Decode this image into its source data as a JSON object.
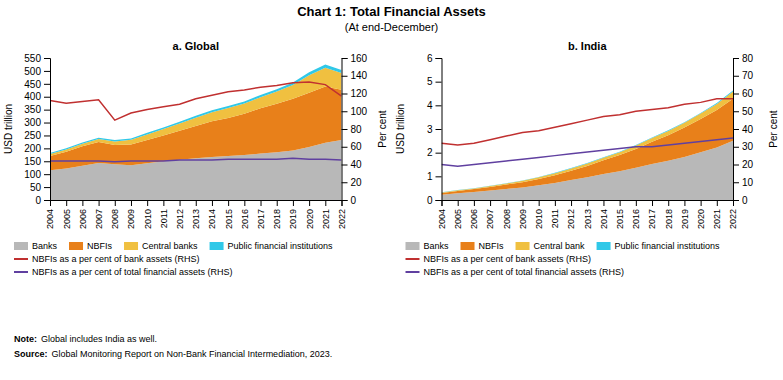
{
  "title": "Chart 1: Total Financial Assets",
  "subtitle": "(At end-December)",
  "annotations": [
    {
      "label": "Note:",
      "text": "Global includes India as well."
    },
    {
      "label": "Source:",
      "text": "Global Monitoring Report on Non-Bank Financial Intermediation, 2023."
    }
  ],
  "chart_data": [
    {
      "type": "area",
      "stacked": true,
      "title": "a. Global",
      "x": [
        2004,
        2005,
        2006,
        2007,
        2008,
        2009,
        2010,
        2011,
        2012,
        2013,
        2014,
        2015,
        2016,
        2017,
        2018,
        2019,
        2020,
        2021,
        2022
      ],
      "xlim": [
        2004,
        2022
      ],
      "xticks": [
        2004,
        2005,
        2006,
        2007,
        2008,
        2009,
        2010,
        2011,
        2012,
        2013,
        2014,
        2015,
        2016,
        2017,
        2018,
        2019,
        2020,
        2021,
        2022
      ],
      "ylabel": "USD trillion",
      "y2label": "Per cent",
      "ylim": [
        0,
        550
      ],
      "yticks": [
        0,
        50,
        100,
        150,
        200,
        250,
        300,
        350,
        400,
        450,
        500,
        550
      ],
      "y2lim": [
        0,
        160
      ],
      "y2ticks": [
        0,
        20,
        40,
        60,
        80,
        100,
        120,
        140,
        160
      ],
      "legend": "bottom",
      "series": [
        {
          "name": "Banks",
          "type": "area",
          "color": "#b8b8b8",
          "values": [
            115,
            122,
            133,
            143,
            138,
            135,
            142,
            150,
            156,
            162,
            167,
            170,
            174,
            180,
            185,
            192,
            205,
            222,
            232
          ]
        },
        {
          "name": "NBFIs",
          "type": "area",
          "color": "#e8801a",
          "values": [
            55,
            65,
            75,
            82,
            75,
            80,
            90,
            100,
            112,
            125,
            138,
            148,
            160,
            175,
            188,
            200,
            210,
            218,
            195
          ]
        },
        {
          "name": "Central banks",
          "type": "area",
          "color": "#f0c040",
          "values": [
            8,
            9,
            10,
            11,
            14,
            18,
            22,
            25,
            28,
            32,
            35,
            38,
            40,
            43,
            47,
            53,
            68,
            72,
            65
          ]
        },
        {
          "name": "Public financial institutions",
          "type": "area",
          "color": "#30c8e8",
          "values": [
            4,
            4,
            5,
            5,
            5,
            5,
            6,
            6,
            7,
            7,
            8,
            8,
            8,
            9,
            9,
            10,
            12,
            13,
            12
          ]
        },
        {
          "name": "NBFIs as a per cent of bank assets (RHS)",
          "type": "line",
          "axis": "y2",
          "color": "#c03030",
          "values": [
            112,
            109,
            111,
            113,
            90,
            98,
            102,
            105,
            108,
            114,
            118,
            122,
            124,
            127,
            129,
            132,
            133,
            130,
            117
          ]
        },
        {
          "name": "NBFIs as a per cent of total financial assets (RHS)",
          "type": "line",
          "axis": "y2",
          "color": "#6040a0",
          "values": [
            44,
            44,
            44,
            44,
            43,
            44,
            44,
            44,
            45,
            45,
            45,
            46,
            46,
            46,
            46,
            47,
            46,
            46,
            45
          ]
        }
      ]
    },
    {
      "type": "area",
      "stacked": true,
      "title": "b. India",
      "x": [
        2004,
        2005,
        2006,
        2007,
        2008,
        2009,
        2010,
        2011,
        2012,
        2013,
        2014,
        2015,
        2016,
        2017,
        2018,
        2019,
        2020,
        2021,
        2022
      ],
      "xlim": [
        2004,
        2022
      ],
      "xticks": [
        2004,
        2005,
        2006,
        2007,
        2008,
        2009,
        2010,
        2011,
        2012,
        2013,
        2014,
        2015,
        2016,
        2017,
        2018,
        2019,
        2020,
        2021,
        2022
      ],
      "ylabel": "USD trillion",
      "y2label": "Per cent",
      "ylim": [
        0,
        6
      ],
      "yticks": [
        0,
        1,
        2,
        3,
        4,
        5,
        6
      ],
      "y2lim": [
        0,
        80
      ],
      "y2ticks": [
        0,
        10,
        20,
        30,
        40,
        50,
        60,
        70,
        80
      ],
      "legend": "bottom",
      "series": [
        {
          "name": "Banks",
          "type": "area",
          "color": "#b8b8b8",
          "values": [
            0.22,
            0.28,
            0.34,
            0.4,
            0.47,
            0.53,
            0.62,
            0.72,
            0.84,
            0.96,
            1.1,
            1.22,
            1.36,
            1.52,
            1.66,
            1.82,
            2.02,
            2.22,
            2.5
          ]
        },
        {
          "name": "NBFIs",
          "type": "area",
          "color": "#e8801a",
          "values": [
            0.08,
            0.1,
            0.12,
            0.15,
            0.18,
            0.22,
            0.27,
            0.33,
            0.4,
            0.48,
            0.58,
            0.68,
            0.8,
            0.94,
            1.08,
            1.24,
            1.4,
            1.58,
            1.78
          ]
        },
        {
          "name": "Central bank",
          "type": "area",
          "color": "#f0c040",
          "values": [
            0.02,
            0.03,
            0.03,
            0.04,
            0.05,
            0.06,
            0.07,
            0.08,
            0.09,
            0.1,
            0.11,
            0.12,
            0.14,
            0.16,
            0.18,
            0.2,
            0.23,
            0.26,
            0.3
          ]
        },
        {
          "name": "Public financial institutions",
          "type": "area",
          "color": "#30c8e8",
          "values": [
            0.01,
            0.01,
            0.01,
            0.01,
            0.01,
            0.01,
            0.01,
            0.02,
            0.02,
            0.02,
            0.02,
            0.02,
            0.02,
            0.02,
            0.03,
            0.03,
            0.03,
            0.04,
            0.05
          ]
        },
        {
          "name": "NBFIs as a per cent of bank assets (RHS)",
          "type": "line",
          "axis": "y2",
          "color": "#c03030",
          "values": [
            32,
            31,
            32,
            34,
            36,
            38,
            39,
            41,
            43,
            45,
            47,
            48,
            50,
            51,
            52,
            54,
            55,
            57,
            57
          ]
        },
        {
          "name": "NBFIs as a per cent of total financial assets (RHS)",
          "type": "line",
          "axis": "y2",
          "color": "#6040a0",
          "values": [
            20,
            19,
            20,
            21,
            22,
            23,
            24,
            25,
            26,
            27,
            28,
            29,
            30,
            30,
            31,
            32,
            33,
            34,
            35
          ]
        }
      ]
    }
  ]
}
